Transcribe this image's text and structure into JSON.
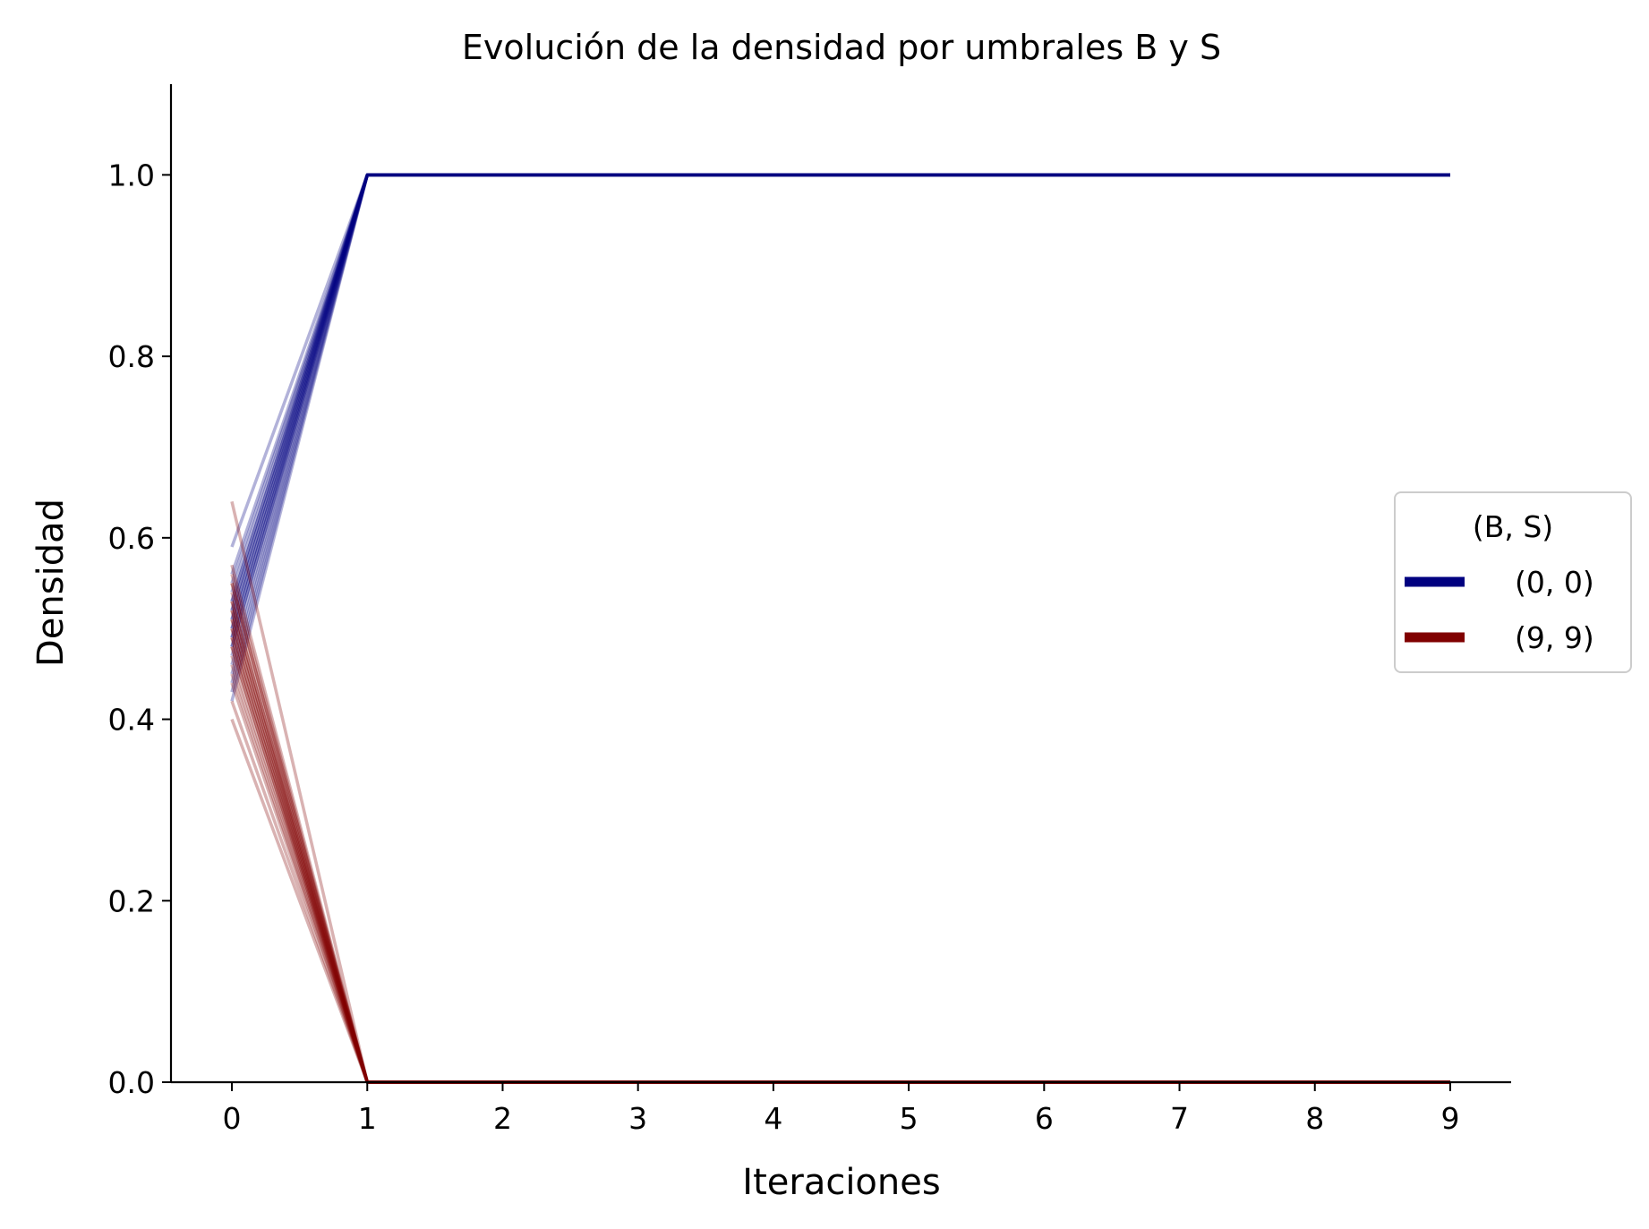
{
  "chart_data": {
    "type": "line",
    "title": "Evolución de la densidad por umbrales B y S",
    "xlabel": "Iteraciones",
    "ylabel": "Densidad",
    "xlim": [
      -0.45,
      9.45
    ],
    "ylim": [
      0.0,
      1.1
    ],
    "xticks": [
      0,
      1,
      2,
      3,
      4,
      5,
      6,
      7,
      8,
      9
    ],
    "yticks": [
      0.0,
      0.2,
      0.4,
      0.6,
      0.8,
      1.0
    ],
    "ytick_labels": [
      "0.0",
      "0.2",
      "0.4",
      "0.6",
      "0.8",
      "1.0"
    ],
    "grid": false,
    "legend": {
      "title": "(B, S)",
      "placement": "center-right outside",
      "entries": [
        {
          "label": "(0, 0)",
          "color": "#000080"
        },
        {
          "label": "(9, 9)",
          "color": "#800000"
        }
      ]
    },
    "x": [
      0,
      1,
      2,
      3,
      4,
      5,
      6,
      7,
      8,
      9
    ],
    "series": [
      {
        "group": "(0, 0)",
        "color": "#000080",
        "run_initial_values": [
          0.59,
          0.56,
          0.55,
          0.54,
          0.53,
          0.53,
          0.52,
          0.52,
          0.51,
          0.51,
          0.5,
          0.5,
          0.49,
          0.49,
          0.48,
          0.48,
          0.47,
          0.46,
          0.45,
          0.44,
          0.43,
          0.42
        ],
        "values_after_iteration_0": [
          1.0,
          1.0,
          1.0,
          1.0,
          1.0,
          1.0,
          1.0,
          1.0,
          1.0
        ]
      },
      {
        "group": "(9, 9)",
        "color": "#800000",
        "run_initial_values": [
          0.64,
          0.57,
          0.56,
          0.55,
          0.55,
          0.54,
          0.53,
          0.53,
          0.52,
          0.52,
          0.51,
          0.51,
          0.5,
          0.5,
          0.49,
          0.49,
          0.48,
          0.48,
          0.47,
          0.46,
          0.45,
          0.44,
          0.42,
          0.4
        ],
        "values_after_iteration_0": [
          0.0,
          0.0,
          0.0,
          0.0,
          0.0,
          0.0,
          0.0,
          0.0,
          0.0
        ]
      }
    ]
  }
}
